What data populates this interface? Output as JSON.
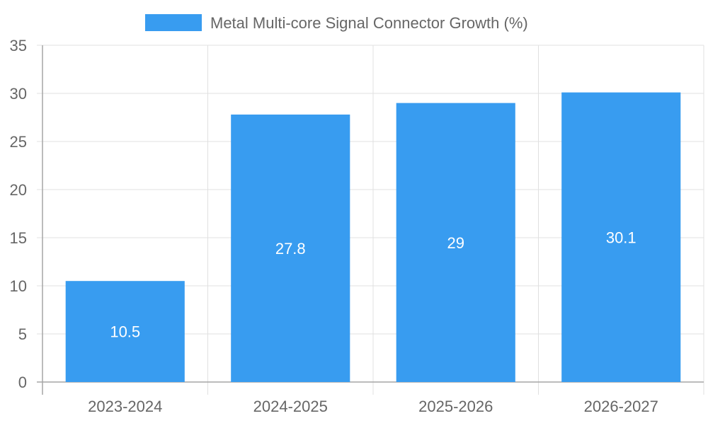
{
  "chart_data": {
    "type": "bar",
    "categories": [
      "2023-2024",
      "2024-2025",
      "2025-2026",
      "2026-2027"
    ],
    "series": [
      {
        "name": "Metal Multi-core Signal Connector Growth (%)",
        "values": [
          10.5,
          27.8,
          29,
          30.1
        ],
        "color": "#389cf0"
      }
    ],
    "value_labels": [
      "10.5",
      "27.8",
      "29",
      "30.1"
    ],
    "y_ticks": [
      "0",
      "5",
      "10",
      "15",
      "20",
      "25",
      "30",
      "35"
    ],
    "ylim": [
      0,
      35
    ],
    "grid": true,
    "legend_position": "top-center",
    "colors": {
      "bar": "#389cf0",
      "grid": "#e0e0e0",
      "axis": "#a6a6a6",
      "tick_text": "#666666",
      "data_label": "#ffffff"
    }
  }
}
